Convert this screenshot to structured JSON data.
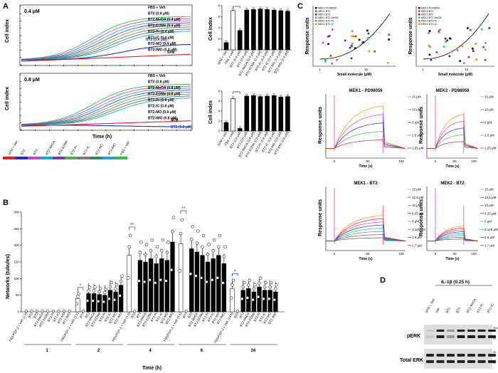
{
  "panels": {
    "A": {
      "label": "A",
      "top": {
        "conc": "0.4 μM",
        "legend": [
          "FBS + Veh",
          "BT3 (0.4 μM)",
          "BT2-MeOA (0.4 μM)",
          "BT2-EOMe (0.4 μM)",
          "BT2-Pr (0.4 μM)",
          "BT2-IC (0.4 μM)",
          "BT2-MO (0.4 μM)",
          "BT2-IMO (0.4 μM)"
        ],
        "bt2": "BT2 (0.4 μM)",
        "sfm": "SFM",
        "bars": [
          1.3,
          7.1,
          3.5,
          7.2,
          7.3,
          7.4,
          7.3,
          7.2,
          7.1,
          7.0
        ],
        "bar_labels": [
          "SFM + Veh",
          "FBS + Veh",
          "BT2 (0.4 μM)",
          "BT3 (0.4 μM)",
          "BT2-MeOA (0.4 μM)",
          "BT2-EOMe (0.4 μM)",
          "BT2-Pr (0.4 μM)",
          "BT2-IC (0.4 μM)",
          "BT2-MO (0.4 μM)",
          "BT2-IMO (0.4 μM)"
        ]
      },
      "bottom": {
        "conc": "0.8 μM",
        "legend": [
          "FBS + Veh",
          "BT3 (0.8 μM)",
          "BT2-MeOA (0.8 μM)",
          "BT2-EOMe (0.8 μM)",
          "BT2-Pr (0.8 μM)",
          "BT2-IC (0.8 μM)",
          "BT2-MO (0.8 μM)",
          "BT2-IMO (0.8 μM)"
        ],
        "bt2": "BT2 (0.8 μM)",
        "sfm": "SFM",
        "bars": [
          1.7,
          6.5,
          0.5,
          7.0,
          7.1,
          6.9,
          7.0,
          7.1,
          6.8,
          6.9
        ],
        "bar_labels": [
          "SFM + Veh",
          "FBS + Veh",
          "BT2 (0.8 μM)",
          "BT3 (0.8 μM)",
          "BT2-MeOA (0.8 μM)",
          "BT2-EOMe (0.8 μM)",
          "BT2-Pr (0.8 μM)",
          "BT2-IC (0.8 μM)",
          "BT2-MO (0.8 μM)",
          "BT2-IMO (0.8 μM)"
        ]
      },
      "ylabel": "Cell index",
      "xlabel": "Time (h)",
      "color_key": [
        "SFM + Veh",
        "BT2",
        "BT3",
        "BT2-MeOA",
        "BT2-EOMe",
        "BT2-Pr",
        "BT2-IC",
        "BT2-MO",
        "BT2-IMO",
        "FBS + Veh"
      ],
      "color_key_colors": [
        "#e02020",
        "#1c2fd0",
        "#d43cd0",
        "#00b8c8",
        "#6a3fb0",
        "#55aa55",
        "#7a7a7a",
        "#2e8b57",
        "#22a0e0",
        "#30c040"
      ]
    },
    "B": {
      "label": "B",
      "ylabel": "Networks (tubules)",
      "xlabel": "Time (h)",
      "timepoints": [
        "1",
        "2",
        "4",
        "6",
        "24"
      ],
      "group_labels": [
        "FBS/FGF-2 + Veh (1 h)",
        "BT2",
        "BT3",
        "BT2-MeOA",
        "BT2-EOMe",
        "BT2-Pr",
        "BT2-IC",
        "BT2-MO",
        "BT2-IMO"
      ],
      "values": [
        [
          0,
          0,
          0,
          0,
          0,
          0,
          0,
          0,
          0
        ],
        [
          40,
          0,
          55,
          55,
          52,
          50,
          65,
          60,
          80
        ],
        [
          170,
          0,
          155,
          150,
          160,
          145,
          160,
          155,
          210
        ],
        [
          205,
          0,
          190,
          180,
          170,
          150,
          160,
          170,
          145
        ],
        [
          70,
          0,
          65,
          70,
          60,
          75,
          65,
          65,
          60
        ]
      ],
      "yticks": [
        "0",
        "50",
        "100",
        "150",
        "200",
        "250",
        "300"
      ],
      "sig": [
        "*",
        "**",
        "**",
        "*"
      ]
    },
    "C": {
      "label": "C",
      "ylabel": "Response units",
      "xlabel_top": "Small molecule (μM)",
      "xlabel_bottom": "Time (s)",
      "legend_left": [
        "MEK1 PD98059",
        "MEK1 BT3",
        "MEK1 BT2",
        "MEK1 BT2-MeOA",
        "MEK1 BT2-Pr",
        "MEK1 BT2-IC"
      ],
      "legend_right": [
        "MEK2 PD98059",
        "MEK2 BT3",
        "MEK2 BT2",
        "MEK2 BT2-MeOA",
        "MEK2 BT2-Pr",
        "MEK2 BT2-IC"
      ],
      "titles": [
        "MEK1 - PD98059",
        "MEK2 - PD98059",
        "MEK1 - BT2",
        "MEK2 - BT2"
      ],
      "pd_conc": [
        "15 μM",
        "10 μM",
        "5 μM",
        "2.5 μM",
        "1.25 μM"
      ],
      "bt2_conc": [
        "15 μM",
        "12.5 μM",
        "10 μM",
        "6.25 μM",
        "5 μM",
        "3.125 μM",
        "2.5 μM",
        "1.7 μM"
      ],
      "x_ticks": [
        "0",
        "50",
        "100"
      ],
      "log_ticks": [
        "1",
        "10"
      ]
    },
    "D": {
      "label": "D",
      "header": "IL-1β (0.25 h)",
      "lanes": [
        "SFM + Veh",
        "Veh",
        "BT2",
        "BT3",
        "BT2-MeOA",
        "BT2-Pr",
        "BT2-IC"
      ],
      "rows": [
        "pERK",
        "Total ERK"
      ],
      "mw": [
        "50 kDa",
        "37",
        "50",
        "37"
      ]
    }
  }
}
